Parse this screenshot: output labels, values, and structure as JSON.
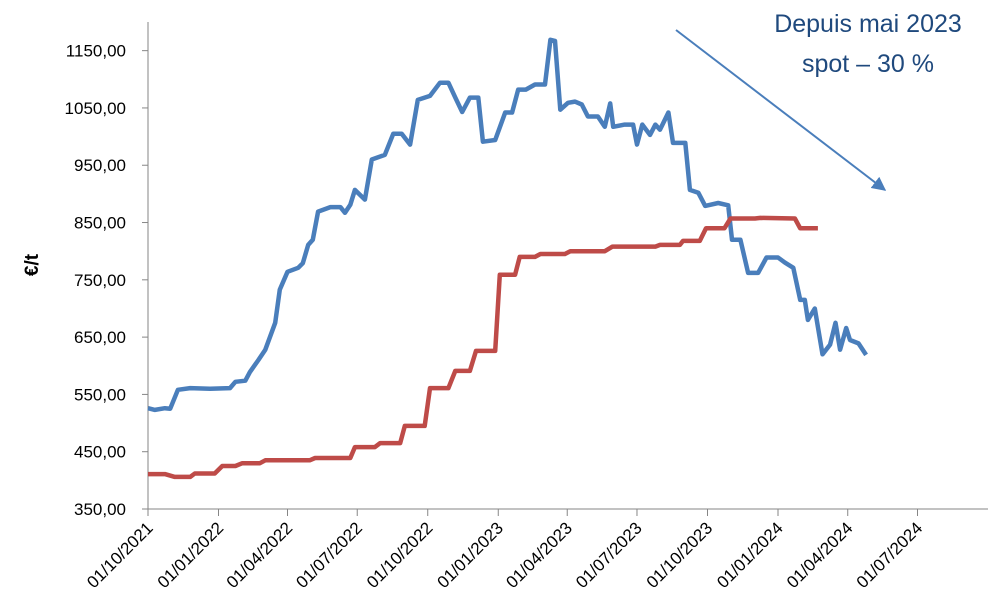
{
  "chart_data": {
    "type": "line",
    "y_label": "€/t",
    "annotation": [
      "Depuis mai 2023",
      "spot – 30 %"
    ],
    "xlim": [
      "01/10/2021",
      "01/10/2024"
    ],
    "xticks": [
      "01/10/2021",
      "01/01/2022",
      "01/04/2022",
      "01/07/2022",
      "01/10/2022",
      "01/01/2023",
      "01/04/2023",
      "01/07/2023",
      "01/10/2023",
      "01/01/2024",
      "01/04/2024",
      "01/07/2024"
    ],
    "ylim": [
      350,
      1200
    ],
    "yticks": [
      {
        "value": 350,
        "label": "350,00"
      },
      {
        "value": 450,
        "label": "450,00"
      },
      {
        "value": 550,
        "label": "550,00"
      },
      {
        "value": 650,
        "label": "650,00"
      },
      {
        "value": 750,
        "label": "750,00"
      },
      {
        "value": 850,
        "label": "850,00"
      },
      {
        "value": 950,
        "label": "950,00"
      },
      {
        "value": 1050,
        "label": "1050,00"
      },
      {
        "value": 1150,
        "label": "1150,00"
      }
    ],
    "series": [
      {
        "color": "#4a7ebb",
        "x": [
          "01/10/2021",
          "10/10/2021",
          "23/10/2021",
          "30/10/2021",
          "09/11/2021",
          "25/11/2021",
          "21/12/2021",
          "16/01/2022",
          "23/01/2022",
          "05/02/2022",
          "11/02/2022",
          "22/02/2022",
          "03/03/2022",
          "16/03/2022",
          "22/03/2022",
          "01/04/2022",
          "15/04/2022",
          "21/04/2022",
          "28/04/2022",
          "04/05/2022",
          "11/05/2022",
          "27/05/2022",
          "09/06/2022",
          "15/06/2022",
          "22/06/2022",
          "28/06/2022",
          "11/07/2022",
          "20/07/2022",
          "06/08/2022",
          "17/08/2022",
          "28/08/2022",
          "08/09/2022",
          "18/09/2022",
          "04/10/2022",
          "17/10/2022",
          "28/10/2022",
          "06/11/2022",
          "15/11/2022",
          "25/11/2022",
          "06/12/2022",
          "12/12/2022",
          "28/12/2022",
          "10/01/2023",
          "19/01/2023",
          "27/01/2023",
          "06/02/2023",
          "18/02/2023",
          "03/03/2023",
          "10/03/2023",
          "16/03/2023",
          "23/03/2023",
          "02/04/2023",
          "11/04/2023",
          "20/04/2023",
          "28/04/2023",
          "11/05/2023",
          "20/05/2023",
          "27/05/2023",
          "31/05/2023",
          "15/06/2023",
          "26/06/2023",
          "01/07/2023",
          "08/07/2023",
          "18/07/2023",
          "25/07/2023",
          "31/07/2023",
          "11/08/2023",
          "17/08/2023",
          "02/09/2023",
          "08/09/2023",
          "19/09/2023",
          "28/09/2023",
          "15/10/2023",
          "28/10/2023",
          "02/11/2023",
          "13/11/2023",
          "23/11/2023",
          "06/12/2023",
          "17/12/2023",
          "01/01/2024",
          "10/01/2024",
          "21/01/2024",
          "30/01/2024",
          "05/02/2024",
          "09/02/2024",
          "18/02/2024",
          "28/02/2024",
          "09/03/2024",
          "16/03/2024",
          "22/03/2024",
          "30/03/2024",
          "04/04/2024",
          "15/04/2024",
          "25/04/2024"
        ],
        "values": [
          526,
          523,
          526,
          525,
          558,
          561,
          560,
          561,
          572,
          574,
          589,
          610,
          628,
          675,
          733,
          764,
          771,
          779,
          811,
          820,
          869,
          877,
          877,
          867,
          881,
          907,
          890,
          960,
          968,
          1005,
          1005,
          986,
          1064,
          1071,
          1094,
          1094,
          1068,
          1043,
          1068,
          1068,
          991,
          994,
          1042,
          1042,
          1082,
          1082,
          1091,
          1091,
          1169,
          1167,
          1047,
          1059,
          1061,
          1056,
          1035,
          1035,
          1017,
          1058,
          1017,
          1021,
          1021,
          986,
          1021,
          1003,
          1021,
          1012,
          1042,
          989,
          989,
          907,
          902,
          879,
          884,
          880,
          820,
          820,
          762,
          762,
          789,
          789,
          780,
          771,
          715,
          715,
          680,
          700,
          620,
          637,
          675,
          628,
          666,
          645,
          639,
          619
        ]
      },
      {
        "color": "#be4b48",
        "x": [
          "01/10/2021",
          "23/10/2021",
          "05/11/2021",
          "25/11/2021",
          "01/12/2021",
          "27/12/2021",
          "06/01/2022",
          "23/01/2022",
          "01/02/2022",
          "24/02/2022",
          "03/03/2022",
          "30/04/2022",
          "07/05/2022",
          "22/06/2022",
          "28/06/2022",
          "24/07/2022",
          "31/07/2022",
          "26/08/2022",
          "01/09/2022",
          "27/09/2022",
          "04/10/2022",
          "28/10/2022",
          "06/11/2022",
          "25/11/2022",
          "03/12/2022",
          "28/12/2022",
          "03/01/2023",
          "23/01/2023",
          "29/01/2023",
          "18/02/2023",
          "25/02/2023",
          "29/03/2023",
          "05/04/2023",
          "20/05/2023",
          "30/05/2023",
          "25/07/2023",
          "31/07/2023",
          "26/08/2023",
          "30/08/2023",
          "21/09/2023",
          "29/09/2023",
          "23/10/2023",
          "31/10/2023",
          "02/12/2023",
          "09/12/2023",
          "23/01/2024",
          "30/01/2024",
          "22/02/2024"
        ],
        "values": [
          411,
          411,
          406,
          406,
          412,
          412,
          425,
          425,
          430,
          430,
          435,
          435,
          439,
          439,
          458,
          458,
          465,
          465,
          495,
          495,
          561,
          561,
          591,
          591,
          626,
          626,
          759,
          759,
          790,
          790,
          795,
          795,
          800,
          800,
          808,
          808,
          811,
          811,
          818,
          818,
          840,
          840,
          857,
          857,
          858,
          857,
          840,
          840
        ]
      }
    ]
  }
}
